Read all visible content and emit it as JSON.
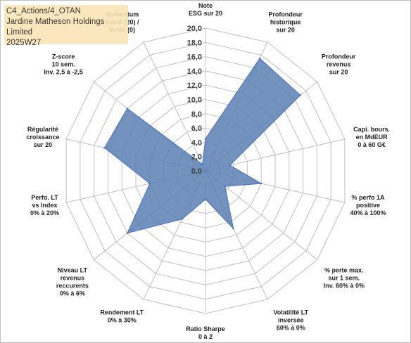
{
  "badge": {
    "line1": "C4_Actions/4_OTAN",
    "line2": "Jardine Matheson Holdings Limited",
    "line3": "2025W27"
  },
  "colors": {
    "fill": "#5b7fb3",
    "stroke": "#4472c4",
    "grid": "#c0c0c0",
    "badge": "#fbe5b6"
  },
  "chart_data": {
    "type": "radar",
    "title": "",
    "rmax": 20,
    "tick_step": 2,
    "tick_labels": [
      "0,0",
      "2,0",
      "4,0",
      "6,0",
      "8,0",
      "10,0",
      "12,0",
      "14,0",
      "16,0",
      "18,0",
      "20,0"
    ],
    "axes": [
      {
        "lines": [
          "Note",
          "ESG sur 20"
        ]
      },
      {
        "lines": [
          "Profondeur",
          "historique",
          "sur 20"
        ]
      },
      {
        "lines": [
          "Profondeur",
          "revenus",
          "sur 20"
        ]
      },
      {
        "lines": [
          "Capi. bours.",
          "en MdEUR",
          "0 à 60 G€"
        ]
      },
      {
        "lines": [
          "% perfo 1A",
          "positive",
          "40% à 100%"
        ]
      },
      {
        "lines": [
          "% perte max.",
          "sur 1 sem.",
          "Inv. 60% à 0%"
        ]
      },
      {
        "lines": [
          "Volatilité LT",
          "inversée",
          "60% à 0%"
        ]
      },
      {
        "lines": [
          "Ratio Sharpe",
          "0 à 2"
        ]
      },
      {
        "lines": [
          "Rendement LT",
          "0% à 30%"
        ]
      },
      {
        "lines": [
          "Niveau LT",
          "revenus",
          "reccurents",
          "0% à 6%"
        ]
      },
      {
        "lines": [
          "Perfo. LT",
          "vs Index",
          "0% à 20%"
        ]
      },
      {
        "lines": [
          "Régularité",
          "croissance",
          "sur 20"
        ]
      },
      {
        "lines": [
          "Z-score",
          "10 sem.",
          "Inv. 2,5 à -2,5"
        ]
      },
      {
        "lines": [
          "Momentum",
          "Achat (20) /",
          "Vente (0)"
        ]
      }
    ],
    "series": [
      {
        "values": [
          4.5,
          17.5,
          17.0,
          3.5,
          8.0,
          3.5,
          9.0,
          4.0,
          7.5,
          14.0,
          8.0,
          14.5,
          14.0,
          1.0
        ]
      }
    ]
  }
}
